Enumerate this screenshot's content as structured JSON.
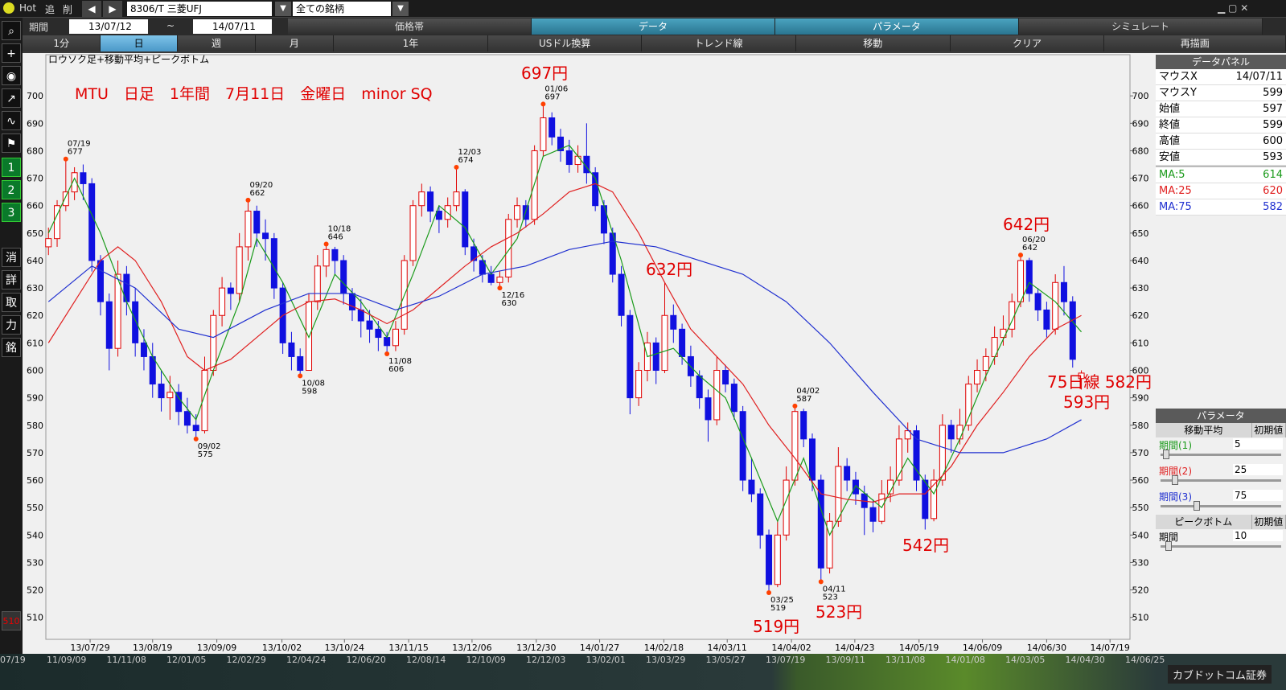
{
  "toolbar": {
    "hot": "Hot",
    "add": "追",
    "del": "削",
    "symbol": "8306/T 三菱UFJ",
    "universe": "全ての銘柄",
    "period_label": "期間",
    "from": "13/07/12",
    "tilde": "~",
    "to": "14/07/11",
    "tabs": [
      "価格帯",
      "データ",
      "パラメータ",
      "シミュレート"
    ],
    "buttons": [
      "1分",
      "日",
      "週",
      "月",
      "1年",
      "USドル換算",
      "トレンド線",
      "移動",
      "クリア",
      "再描画"
    ]
  },
  "sidebar": [
    "1",
    "2",
    "3",
    "消",
    "詳",
    "取",
    "力",
    "銘",
    "510"
  ],
  "chart_data": {
    "type": "candlestick",
    "subtitle": "ロウソク足+移動平均+ピークボトム",
    "title": "MTU　日足　1年間　7月11日　金曜日　minor SQ",
    "ylim": [
      502,
      715
    ],
    "yticks": [
      510,
      520,
      530,
      540,
      550,
      560,
      570,
      580,
      590,
      600,
      610,
      620,
      630,
      640,
      650,
      660,
      670,
      680,
      690,
      700
    ],
    "xlim": [
      -0.3,
      124.6
    ],
    "xticks": [
      {
        "value": 4.8,
        "label": "13/07/29"
      },
      {
        "value": 12,
        "label": "13/08/19"
      },
      {
        "value": 19.4,
        "label": "13/09/09"
      },
      {
        "value": 26.9,
        "label": "13/10/02"
      },
      {
        "value": 34.1,
        "label": "13/10/24"
      },
      {
        "value": 41.5,
        "label": "13/11/15"
      },
      {
        "value": 48.8,
        "label": "13/12/06"
      },
      {
        "value": 56.2,
        "label": "13/12/30"
      },
      {
        "value": 63.5,
        "label": "14/01/27"
      },
      {
        "value": 70.9,
        "label": "14/02/18"
      },
      {
        "value": 78.2,
        "label": "14/03/11"
      },
      {
        "value": 85.6,
        "label": "14/04/02"
      },
      {
        "value": 92.9,
        "label": "14/04/23"
      },
      {
        "value": 100.3,
        "label": "14/05/19"
      },
      {
        "value": 107.6,
        "label": "14/06/09"
      },
      {
        "value": 115,
        "label": "14/06/30"
      },
      {
        "value": 122.3,
        "label": "14/07/19"
      }
    ],
    "up_color": "#e00000",
    "down_color": "#1010e0",
    "ohlc": [
      [
        645,
        652,
        642,
        648
      ],
      [
        648,
        662,
        645,
        660
      ],
      [
        660,
        677,
        658,
        665
      ],
      [
        665,
        674,
        662,
        672
      ],
      [
        672,
        675,
        662,
        668
      ],
      [
        668,
        670,
        636,
        640
      ],
      [
        640,
        642,
        620,
        625
      ],
      [
        625,
        628,
        600,
        608
      ],
      [
        608,
        640,
        605,
        635
      ],
      [
        635,
        638,
        620,
        625
      ],
      [
        625,
        630,
        605,
        610
      ],
      [
        610,
        615,
        600,
        605
      ],
      [
        605,
        610,
        590,
        595
      ],
      [
        595,
        600,
        585,
        590
      ],
      [
        590,
        598,
        582,
        592
      ],
      [
        592,
        595,
        580,
        585
      ],
      [
        585,
        590,
        577,
        580
      ],
      [
        580,
        584,
        575,
        578
      ],
      [
        578,
        605,
        577,
        600
      ],
      [
        600,
        622,
        598,
        620
      ],
      [
        620,
        634,
        616,
        630
      ],
      [
        630,
        632,
        622,
        628
      ],
      [
        628,
        650,
        625,
        645
      ],
      [
        645,
        662,
        640,
        658
      ],
      [
        658,
        660,
        645,
        650
      ],
      [
        650,
        655,
        640,
        648
      ],
      [
        648,
        650,
        626,
        630
      ],
      [
        630,
        632,
        606,
        610
      ],
      [
        610,
        614,
        600,
        605
      ],
      [
        605,
        608,
        598,
        600
      ],
      [
        600,
        628,
        600,
        625
      ],
      [
        625,
        642,
        622,
        638
      ],
      [
        638,
        646,
        634,
        644
      ],
      [
        644,
        645,
        635,
        640
      ],
      [
        640,
        642,
        624,
        628
      ],
      [
        628,
        630,
        618,
        622
      ],
      [
        622,
        626,
        612,
        618
      ],
      [
        618,
        622,
        610,
        615
      ],
      [
        615,
        618,
        607,
        612
      ],
      [
        612,
        614,
        606,
        609
      ],
      [
        609,
        618,
        607,
        615
      ],
      [
        615,
        642,
        613,
        640
      ],
      [
        640,
        662,
        638,
        660
      ],
      [
        660,
        668,
        656,
        665
      ],
      [
        665,
        667,
        654,
        658
      ],
      [
        658,
        660,
        650,
        655
      ],
      [
        655,
        663,
        652,
        660
      ],
      [
        660,
        674,
        658,
        665
      ],
      [
        665,
        666,
        642,
        645
      ],
      [
        645,
        648,
        636,
        640
      ],
      [
        640,
        642,
        632,
        635
      ],
      [
        635,
        638,
        631,
        632
      ],
      [
        632,
        636,
        630,
        634
      ],
      [
        634,
        657,
        632,
        655
      ],
      [
        655,
        663,
        652,
        660
      ],
      [
        660,
        662,
        652,
        655
      ],
      [
        655,
        682,
        653,
        680
      ],
      [
        680,
        697,
        678,
        692
      ],
      [
        692,
        694,
        682,
        685
      ],
      [
        685,
        688,
        676,
        680
      ],
      [
        680,
        684,
        672,
        675
      ],
      [
        675,
        682,
        672,
        678
      ],
      [
        678,
        690,
        668,
        672
      ],
      [
        672,
        674,
        658,
        660
      ],
      [
        660,
        662,
        646,
        650
      ],
      [
        650,
        652,
        632,
        635
      ],
      [
        635,
        638,
        616,
        620
      ],
      [
        620,
        622,
        584,
        590
      ],
      [
        590,
        603,
        587,
        600
      ],
      [
        600,
        614,
        596,
        610
      ],
      [
        610,
        612,
        595,
        600
      ],
      [
        600,
        632,
        599,
        620
      ],
      [
        620,
        624,
        610,
        615
      ],
      [
        615,
        617,
        602,
        605
      ],
      [
        605,
        609,
        594,
        598
      ],
      [
        598,
        600,
        586,
        590
      ],
      [
        590,
        593,
        574,
        582
      ],
      [
        582,
        605,
        580,
        600
      ],
      [
        600,
        602,
        592,
        595
      ],
      [
        595,
        597,
        582,
        585
      ],
      [
        585,
        587,
        556,
        560
      ],
      [
        560,
        568,
        552,
        555
      ],
      [
        555,
        557,
        535,
        540
      ],
      [
        540,
        542,
        519,
        522
      ],
      [
        522,
        545,
        521,
        540
      ],
      [
        540,
        565,
        538,
        560
      ],
      [
        560,
        587,
        558,
        585
      ],
      [
        585,
        586,
        572,
        575
      ],
      [
        575,
        577,
        556,
        560
      ],
      [
        560,
        562,
        523,
        528
      ],
      [
        528,
        548,
        526,
        545
      ],
      [
        545,
        572,
        543,
        565
      ],
      [
        565,
        568,
        556,
        560
      ],
      [
        560,
        563,
        551,
        555
      ],
      [
        555,
        558,
        540,
        550
      ],
      [
        550,
        553,
        541,
        545
      ],
      [
        545,
        560,
        544,
        555
      ],
      [
        555,
        565,
        552,
        560
      ],
      [
        560,
        580,
        558,
        575
      ],
      [
        575,
        581,
        570,
        578
      ],
      [
        578,
        580,
        556,
        560
      ],
      [
        560,
        562,
        542,
        546
      ],
      [
        546,
        564,
        545,
        560
      ],
      [
        560,
        584,
        558,
        580
      ],
      [
        580,
        582,
        570,
        575
      ],
      [
        575,
        586,
        573,
        580
      ],
      [
        580,
        598,
        578,
        595
      ],
      [
        595,
        604,
        592,
        600
      ],
      [
        600,
        608,
        596,
        605
      ],
      [
        605,
        616,
        602,
        612
      ],
      [
        612,
        620,
        609,
        615
      ],
      [
        615,
        628,
        612,
        625
      ],
      [
        625,
        642,
        623,
        640
      ],
      [
        640,
        641,
        625,
        628
      ],
      [
        628,
        630,
        618,
        622
      ],
      [
        622,
        625,
        612,
        615
      ],
      [
        615,
        635,
        613,
        632
      ],
      [
        632,
        638,
        620,
        625
      ],
      [
        625,
        627,
        601,
        604
      ],
      [
        597,
        600,
        593,
        599
      ]
    ],
    "series": [
      {
        "name": "MA:5",
        "color": "#1a9a1a",
        "x": [
          0,
          3,
          6,
          9,
          12,
          15,
          17,
          19,
          22,
          24,
          27,
          30,
          33,
          36,
          39,
          42,
          45,
          48,
          51,
          54,
          57,
          60,
          63,
          66,
          69,
          72,
          75,
          78,
          81,
          84,
          87,
          90,
          93,
          96,
          99,
          102,
          105,
          108,
          111,
          113,
          116,
          119
        ],
        "values": [
          650,
          670,
          650,
          625,
          605,
          590,
          582,
          600,
          625,
          648,
          632,
          612,
          635,
          625,
          612,
          635,
          660,
          652,
          635,
          648,
          678,
          682,
          670,
          640,
          605,
          608,
          598,
          590,
          568,
          545,
          568,
          540,
          558,
          550,
          568,
          555,
          575,
          598,
          618,
          632,
          625,
          614
        ]
      },
      {
        "name": "MA:25",
        "color": "#e02020",
        "x": [
          0,
          3,
          6,
          8,
          10,
          13,
          16,
          18,
          21,
          24,
          27,
          30,
          33,
          36,
          39,
          42,
          45,
          48,
          51,
          54,
          57,
          60,
          63,
          65,
          68,
          71,
          74,
          77,
          80,
          83,
          86,
          89,
          92,
          95,
          98,
          101,
          104,
          107,
          110,
          113,
          116,
          119
        ],
        "values": [
          610,
          625,
          640,
          645,
          640,
          625,
          605,
          600,
          604,
          612,
          620,
          625,
          626,
          622,
          617,
          622,
          630,
          638,
          645,
          650,
          657,
          665,
          668,
          665,
          650,
          632,
          615,
          605,
          595,
          580,
          568,
          555,
          553,
          552,
          555,
          555,
          565,
          580,
          592,
          605,
          615,
          620
        ]
      },
      {
        "name": "MA:75",
        "color": "#2030d0",
        "x": [
          0,
          5,
          10,
          15,
          19,
          25,
          30,
          35,
          40,
          45,
          50,
          55,
          60,
          65,
          70,
          75,
          80,
          85,
          90,
          95,
          100,
          105,
          110,
          115,
          119
        ],
        "values": [
          625,
          638,
          630,
          615,
          612,
          622,
          628,
          628,
          622,
          627,
          635,
          638,
          644,
          647,
          645,
          640,
          635,
          625,
          610,
          592,
          575,
          570,
          570,
          575,
          582
        ]
      }
    ],
    "peak_color": "#ff4000",
    "peaks": [
      {
        "x": 2,
        "date": "07/19",
        "value": 677,
        "kind": "high"
      },
      {
        "x": 17,
        "date": "09/02",
        "value": 575,
        "kind": "low"
      },
      {
        "x": 23,
        "date": "09/20",
        "value": 662,
        "kind": "high"
      },
      {
        "x": 29,
        "date": "10/08",
        "value": 598,
        "kind": "low"
      },
      {
        "x": 32,
        "date": "10/18",
        "value": 646,
        "kind": "high"
      },
      {
        "x": 39,
        "date": "11/08",
        "value": 606,
        "kind": "low"
      },
      {
        "x": 47,
        "date": "12/03",
        "value": 674,
        "kind": "high"
      },
      {
        "x": 52,
        "date": "12/16",
        "value": 630,
        "kind": "low"
      },
      {
        "x": 57,
        "date": "01/06",
        "value": 697,
        "kind": "high"
      },
      {
        "x": 83,
        "date": "03/25",
        "value": 519,
        "kind": "low"
      },
      {
        "x": 86,
        "date": "04/02",
        "value": 587,
        "kind": "high"
      },
      {
        "x": 89,
        "date": "04/11",
        "value": 523,
        "kind": "low"
      },
      {
        "x": 112,
        "date": "06/20",
        "value": 642,
        "kind": "high"
      }
    ],
    "annotations": [
      "697円",
      "632円",
      "519円",
      "523円",
      "542円",
      "642円",
      "593円",
      "75日線 582円"
    ]
  },
  "data_panel": {
    "title": "データパネル",
    "rows": [
      {
        "label": "マウスX",
        "value": "14/07/11"
      },
      {
        "label": "マウスY",
        "value": 599
      },
      {
        "label": "始値",
        "value": 597
      },
      {
        "label": "終値",
        "value": 599
      },
      {
        "label": "高値",
        "value": 600
      },
      {
        "label": "安値",
        "value": 593
      },
      {
        "label": "MA:5",
        "value": 614,
        "color": "#1a9a1a"
      },
      {
        "label": "MA:25",
        "value": 620,
        "color": "#e02020"
      },
      {
        "label": "MA:75",
        "value": 582,
        "color": "#2030d0"
      }
    ]
  },
  "parameter_panel": {
    "title": "パラメータ",
    "ma_header": "移動平均",
    "default_header": "初期値",
    "ma_rows": [
      {
        "label": "期間(1)",
        "value": 5,
        "color": "#1a9a1a"
      },
      {
        "label": "期間(2)",
        "value": 25,
        "color": "#e02020"
      },
      {
        "label": "期間(3)",
        "value": 75,
        "color": "#2030d0"
      }
    ],
    "peak_header": "ピークボトム",
    "peak_default": "初期値",
    "peak_rows": [
      {
        "label": "期間",
        "value": 10
      }
    ]
  },
  "timeline": {
    "labels": [
      "07/19",
      "11/09/09",
      "11/11/08",
      "12/01/05",
      "12/02/29",
      "12/04/24",
      "12/06/20",
      "12/08/14",
      "12/10/09",
      "12/12/03",
      "13/02/01",
      "13/03/29",
      "13/05/27",
      "13/07/19",
      "13/09/11",
      "13/11/08",
      "14/01/08",
      "14/03/05",
      "14/04/30",
      "14/06/25"
    ],
    "brand": "カブドットコム証券"
  }
}
